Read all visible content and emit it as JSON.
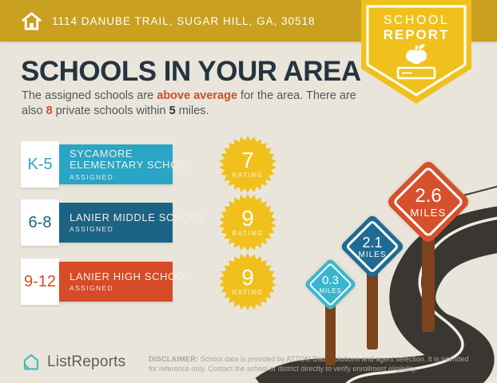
{
  "topbar": {
    "address": "1114 DANUBE TRAIL, SUGAR HILL, GA, 30518"
  },
  "badge": {
    "line1": "SCHOOL",
    "line2": "REPORT"
  },
  "main": {
    "title": "SCHOOLS IN YOUR AREA",
    "intro": {
      "pre": "The assigned schools are ",
      "hl1": "above average",
      "mid1": " for the area. There are",
      "mid2": "also ",
      "hl2": "8",
      "mid3": " private schools within ",
      "hl3": "5",
      "post": " miles."
    }
  },
  "schools": [
    {
      "grade": "K-5",
      "name": [
        "SYCAMORE",
        "ELEMENTARY SCHOOL"
      ],
      "status": "ASSIGNED",
      "rating": "7",
      "rating_label": "RATING",
      "color": "#29a5c5"
    },
    {
      "grade": "6-8",
      "name": [
        "LANIER MIDDLE SCHOOL"
      ],
      "status": "ASSIGNED",
      "rating": "9",
      "rating_label": "RATING",
      "color": "#1b6385"
    },
    {
      "grade": "9-12",
      "name": [
        "LANIER HIGH SCHOOL"
      ],
      "status": "ASSIGNED",
      "rating": "9",
      "rating_label": "RATING",
      "color": "#d64b28"
    }
  ],
  "signs": [
    {
      "value": "0.3",
      "unit": "MILES",
      "color": "#38b6ce"
    },
    {
      "value": "2.1",
      "unit": "MILES",
      "color": "#1f6b93"
    },
    {
      "value": "2.6",
      "unit": "MILES",
      "color": "#d7502c"
    }
  ],
  "footer": {
    "brand": "ListReports",
    "disclaimer_label": "DISCLAIMER:",
    "disclaimer_text": " School data is provided by ATTOM Data Solutions and agent selection. It is intended for reference only. Contact the school or district directly to verify enrollment eligibility."
  },
  "colors": {
    "topbar_gold": "#c9a01f",
    "badge_yellow": "#f0c11d",
    "background_cream": "#eae5db",
    "headline_navy": "#263440",
    "body_gray": "#54565a",
    "accent_orange": "#cb4e2a",
    "burst_yellow": "#f0c11d",
    "road_dark": "#3a3732",
    "post_brown": "#7d431c",
    "logo_teal": "#3fc1b2"
  }
}
